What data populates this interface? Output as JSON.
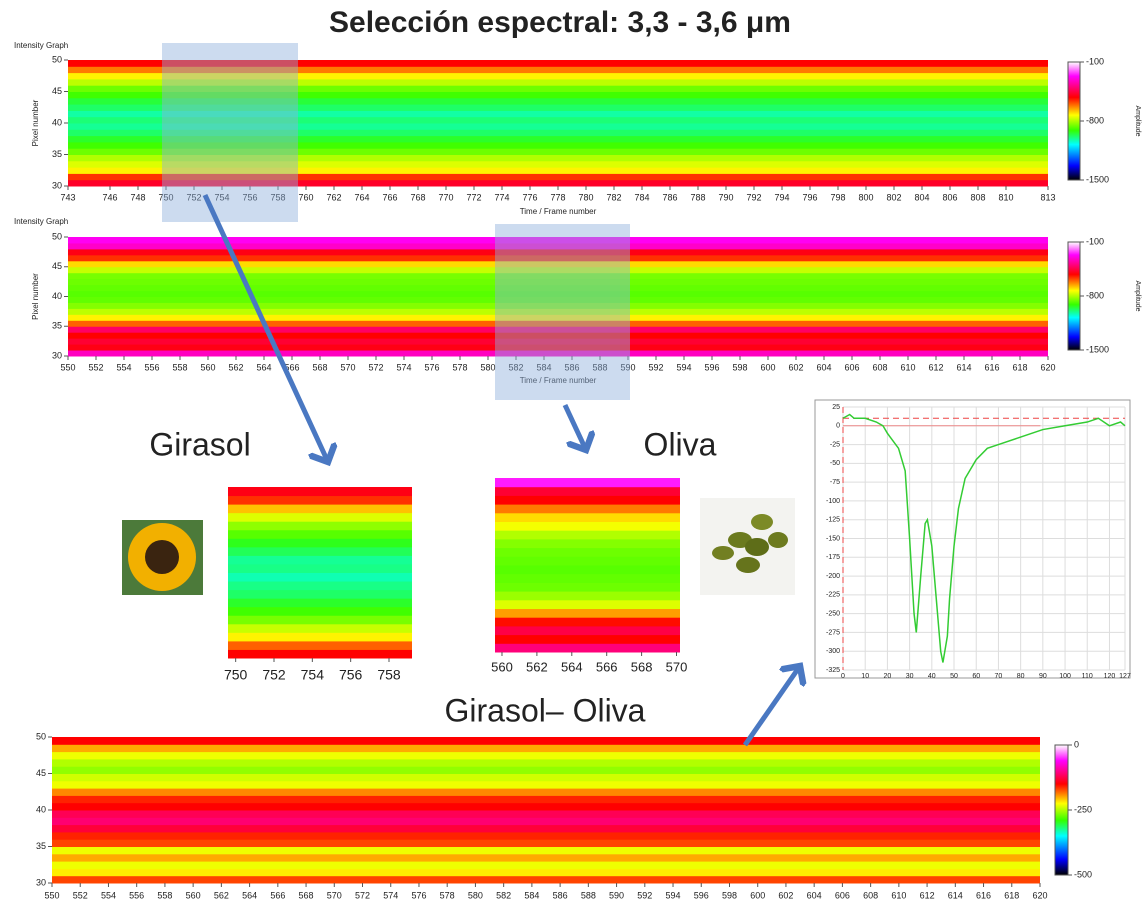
{
  "title": "Selección espectral: 3,3 - 3,6 μm",
  "labels": {
    "girasol": "Girasol",
    "oliva": "Oliva",
    "difference": "Girasol– Oliva"
  },
  "chart_data": [
    {
      "type": "heatmap",
      "title": "Intensity Graph",
      "x_label": "Time / Frame number",
      "y_label": "Pixel number",
      "colorbar_label": "Amplitude",
      "xlim": [
        743,
        813
      ],
      "xticks": [
        743,
        746,
        748,
        750,
        752,
        754,
        756,
        758,
        760,
        762,
        764,
        766,
        768,
        770,
        772,
        774,
        776,
        778,
        780,
        782,
        784,
        786,
        788,
        790,
        792,
        794,
        796,
        798,
        800,
        802,
        804,
        806,
        808,
        810,
        813
      ],
      "ylim": [
        30,
        50
      ],
      "yticks": [
        30,
        35,
        40,
        45,
        50
      ],
      "clim": [
        -1500,
        -100
      ],
      "cticks": [
        -1500,
        -800,
        -100
      ],
      "rows": [
        -480,
        -560,
        -720,
        -760,
        -800,
        -860,
        -900,
        -940,
        -980,
        -1010,
        -990,
        -1020,
        -980,
        -950,
        -900,
        -860,
        -790,
        -720,
        -620,
        -520
      ]
    },
    {
      "type": "heatmap",
      "title": "Intensity Graph",
      "x_label": "Time / Frame number",
      "y_label": "Pixel number",
      "colorbar_label": "Amplitude",
      "xlim": [
        550,
        620
      ],
      "xticks": [
        550,
        552,
        554,
        556,
        558,
        560,
        562,
        564,
        566,
        568,
        570,
        572,
        574,
        576,
        578,
        580,
        582,
        584,
        586,
        588,
        590,
        592,
        594,
        596,
        598,
        600,
        602,
        604,
        606,
        608,
        610,
        612,
        614,
        616,
        618,
        620
      ],
      "ylim": [
        30,
        50
      ],
      "yticks": [
        30,
        35,
        40,
        45,
        50
      ],
      "clim": [
        -1500,
        -100
      ],
      "cticks": [
        -1500,
        -800,
        -100
      ],
      "rows": [
        -330,
        -500,
        -470,
        -520,
        -420,
        -600,
        -720,
        -790,
        -840,
        -870,
        -880,
        -870,
        -860,
        -850,
        -780,
        -700,
        -560,
        -500,
        -320,
        -280
      ]
    },
    {
      "type": "heatmap",
      "xlim": [
        749.6,
        759.2
      ],
      "xticks": [
        750,
        752,
        754,
        756,
        758
      ],
      "ylim": [
        30,
        50
      ],
      "clim": [
        -1500,
        -100
      ],
      "rows": [
        -520,
        -600,
        -720,
        -780,
        -850,
        -900,
        -940,
        -980,
        -1000,
        -1030,
        -1000,
        -1010,
        -970,
        -930,
        -880,
        -830,
        -760,
        -680,
        -560,
        -500
      ]
    },
    {
      "type": "heatmap",
      "xlim": [
        559.6,
        570.2
      ],
      "xticks": [
        560,
        562,
        564,
        566,
        568,
        570
      ],
      "ylim": [
        30,
        50
      ],
      "clim": [
        -1500,
        -100
      ],
      "rows": [
        -400,
        -520,
        -450,
        -530,
        -650,
        -760,
        -820,
        -860,
        -870,
        -880,
        -870,
        -860,
        -840,
        -800,
        -740,
        -700,
        -620,
        -520,
        -470,
        -250
      ]
    },
    {
      "type": "line",
      "color": "#33cc33",
      "grid": true,
      "xlim": [
        0,
        127
      ],
      "xticks": [
        0,
        10,
        20,
        30,
        40,
        50,
        60,
        70,
        80,
        90,
        100,
        110,
        120,
        127
      ],
      "ylim": [
        -325,
        25
      ],
      "yticks": [
        25,
        0,
        -25,
        -50,
        -75,
        -100,
        -125,
        -150,
        -175,
        -200,
        -225,
        -250,
        -275,
        -300,
        -325
      ],
      "x": [
        0,
        3,
        5,
        10,
        15,
        18,
        20,
        25,
        28,
        30,
        32,
        33,
        35,
        37,
        38,
        40,
        42,
        44,
        45,
        47,
        48,
        50,
        52,
        55,
        60,
        65,
        70,
        80,
        90,
        100,
        110,
        115,
        120,
        125,
        127
      ],
      "values": [
        10,
        15,
        10,
        10,
        5,
        0,
        -10,
        -30,
        -60,
        -150,
        -250,
        -275,
        -200,
        -130,
        -125,
        -160,
        -230,
        -300,
        -315,
        -280,
        -230,
        -160,
        -110,
        -70,
        -45,
        -30,
        -25,
        -15,
        -5,
        0,
        5,
        10,
        0,
        5,
        0
      ]
    },
    {
      "type": "heatmap",
      "xlim": [
        550,
        620
      ],
      "xticks": [
        550,
        552,
        554,
        556,
        558,
        560,
        562,
        564,
        566,
        568,
        570,
        572,
        574,
        576,
        578,
        580,
        582,
        584,
        586,
        588,
        590,
        592,
        594,
        596,
        598,
        600,
        602,
        604,
        606,
        608,
        610,
        612,
        614,
        616,
        618,
        620
      ],
      "ylim": [
        30,
        50
      ],
      "yticks": [
        30,
        35,
        40,
        45,
        50
      ],
      "clim": [
        -500,
        0
      ],
      "cticks": [
        -500,
        -250,
        0
      ],
      "rows": [
        -170,
        -220,
        -230,
        -200,
        -230,
        -170,
        -160,
        -130,
        -110,
        -120,
        -150,
        -160,
        -190,
        -230,
        -240,
        -260,
        -250,
        -230,
        -200,
        -150
      ]
    }
  ]
}
